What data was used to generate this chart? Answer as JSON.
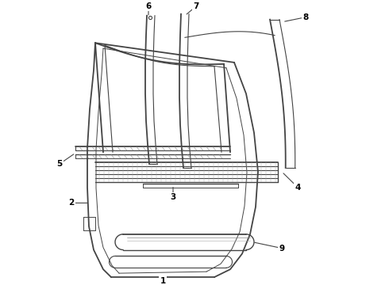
{
  "bg_color": "#ffffff",
  "line_color": "#444444",
  "label_color": "#000000",
  "figsize": [
    4.9,
    3.6
  ],
  "dpi": 100
}
